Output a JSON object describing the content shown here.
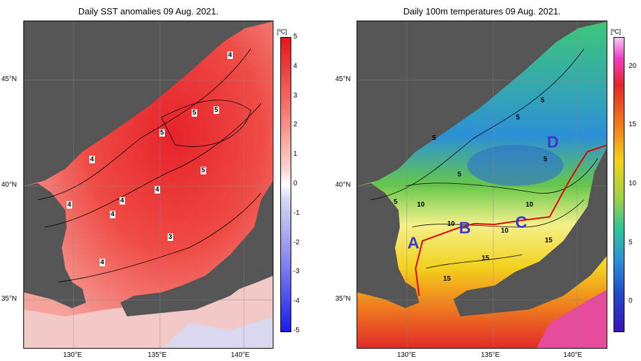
{
  "left": {
    "title": "Daily SST anomalies 09 Aug. 2021.",
    "unit": "[ºC]",
    "colorbar_ticks": [
      "5",
      "4",
      "3",
      "2",
      "1",
      "0",
      "-1",
      "-2",
      "-3",
      "-4",
      "-5"
    ],
    "contour_labels": [
      "4",
      "5",
      "5",
      "5",
      "4",
      "5",
      "4",
      "4",
      "4",
      "4",
      "3",
      "4"
    ]
  },
  "right": {
    "title": "Daily 100m temperatures 09 Aug. 2021.",
    "unit": "[ºC]",
    "colorbar_ticks": [
      "20",
      "15",
      "10",
      "5",
      "0"
    ],
    "contour_labels": [
      "5",
      "5",
      "5",
      "5",
      "5",
      "5",
      "10",
      "10",
      "10",
      "10",
      "15",
      "15",
      "15"
    ],
    "region_labels": [
      "A",
      "B",
      "C",
      "D"
    ]
  },
  "axes": {
    "lat_labels": [
      "45°N",
      "40°N",
      "35°N"
    ],
    "lon_labels": [
      "130°E",
      "135°E",
      "140°E"
    ]
  },
  "colors": {
    "land": "#555555",
    "section_line": "#e00000",
    "region_label": "#3a3ad0"
  }
}
